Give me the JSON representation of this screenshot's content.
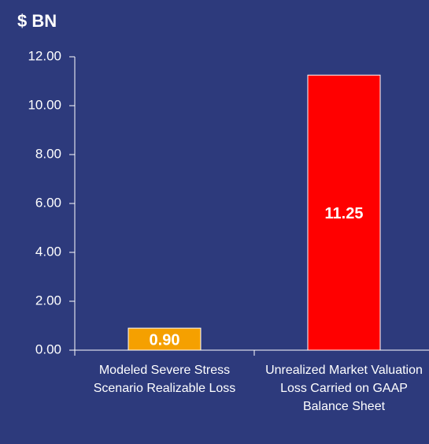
{
  "chart_data": {
    "type": "bar",
    "y_label": "$ BN",
    "categories": [
      "Modeled Severe Stress Scenario Realizable Loss",
      "Unrealized Market Valuation Loss Carried on GAAP Balance Sheet"
    ],
    "values": [
      0.9,
      11.25
    ],
    "value_labels": [
      "0.90",
      "11.25"
    ],
    "colors": [
      "#f5a000",
      "#ff0000"
    ],
    "ylim": [
      0,
      12
    ],
    "yticks": [
      {
        "value": 0,
        "label": "0.00"
      },
      {
        "value": 2,
        "label": "2.00"
      },
      {
        "value": 4,
        "label": "4.00"
      },
      {
        "value": 6,
        "label": "6.00"
      },
      {
        "value": 8,
        "label": "8.00"
      },
      {
        "value": 10,
        "label": "10.00"
      },
      {
        "value": 12,
        "label": "12.00"
      }
    ],
    "grid": false
  }
}
